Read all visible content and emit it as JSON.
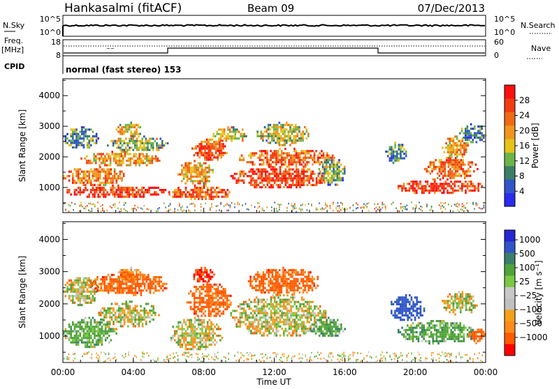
{
  "header": {
    "station": "Hankasalmi (fitACF)",
    "beam": "Beam 09",
    "date": "07/Dec/2013"
  },
  "top_panels": {
    "nsky_label": "N.Sky",
    "nsearch_label": "N.Search",
    "noise_ticks": [
      "10^5",
      "10^0"
    ],
    "freq_label": "Freq.",
    "freq_unit": "[MHz]",
    "freq_ticks": [
      "18",
      "8"
    ],
    "nave_label": "Nave",
    "nave_ticks": [
      "60",
      "0"
    ],
    "cpid_label": "CPID",
    "cpid_value": "normal (fast stereo) 153"
  },
  "colors": {
    "power_scale": [
      "#2a2af0",
      "#2f55c8",
      "#3a7f66",
      "#6bb54a",
      "#e6c21a",
      "#f0961e",
      "#f06a16",
      "#f03c10",
      "#ff1010"
    ],
    "velocity_scale": [
      "#ff0000",
      "#ff5a00",
      "#ff8a1a",
      "#f4a018",
      "#c0c0c0",
      "#c8c8c8",
      "#7ac843",
      "#4fa33a",
      "#3a7f6a",
      "#2f55c8",
      "#2626d4"
    ]
  },
  "chart_data": [
    {
      "type": "heatmap",
      "title": "Power",
      "ylabel": "Slant Range [km]",
      "ylim": [
        180,
        4550
      ],
      "yticks": [
        "1000",
        "2000",
        "3000",
        "4000"
      ],
      "colorbar_label": "Power [dB]",
      "colorbar_ticks": [
        "4",
        "8",
        "12",
        "16",
        "20",
        "24",
        "28"
      ],
      "colorbar_range": [
        0,
        32
      ],
      "blobs": [
        {
          "t0": 0.0,
          "t1": 6.0,
          "r0": 700,
          "r1": 1100,
          "v": 27
        },
        {
          "t0": 0.0,
          "t1": 3.5,
          "r0": 1100,
          "r1": 1700,
          "v": 22
        },
        {
          "t0": 1.0,
          "t1": 5.5,
          "r0": 1700,
          "r1": 2200,
          "v": 20
        },
        {
          "t0": 0.0,
          "t1": 2.0,
          "r0": 2300,
          "r1": 3000,
          "v": 9
        },
        {
          "t0": 2.5,
          "t1": 6.0,
          "r0": 2200,
          "r1": 2700,
          "v": 13
        },
        {
          "t0": 3.0,
          "t1": 4.5,
          "r0": 2700,
          "r1": 3150,
          "v": 18
        },
        {
          "t0": 6.0,
          "t1": 9.5,
          "r0": 600,
          "r1": 1100,
          "v": 24
        },
        {
          "t0": 6.5,
          "t1": 8.5,
          "r0": 1100,
          "r1": 1900,
          "v": 19
        },
        {
          "t0": 7.3,
          "t1": 9.3,
          "r0": 1900,
          "r1": 2600,
          "v": 26
        },
        {
          "t0": 8.5,
          "t1": 10.5,
          "r0": 2500,
          "r1": 3000,
          "v": 17
        },
        {
          "t0": 9.5,
          "t1": 15.0,
          "r0": 1000,
          "r1": 1700,
          "v": 27
        },
        {
          "t0": 10.0,
          "t1": 15.5,
          "r0": 1700,
          "r1": 2300,
          "v": 24
        },
        {
          "t0": 11.0,
          "t1": 14.0,
          "r0": 2400,
          "r1": 3150,
          "v": 15
        },
        {
          "t0": 14.5,
          "t1": 16.0,
          "r0": 1100,
          "r1": 2000,
          "v": 12
        },
        {
          "t0": 18.3,
          "t1": 19.5,
          "r0": 1800,
          "r1": 2500,
          "v": 9
        },
        {
          "t0": 19.0,
          "t1": 23.8,
          "r0": 800,
          "r1": 1300,
          "v": 28
        },
        {
          "t0": 20.5,
          "t1": 23.5,
          "r0": 1300,
          "r1": 2000,
          "v": 23
        },
        {
          "t0": 21.5,
          "t1": 23.0,
          "r0": 2000,
          "r1": 2700,
          "v": 20
        },
        {
          "t0": 22.5,
          "t1": 24.0,
          "r0": 2500,
          "r1": 3100,
          "v": 8
        }
      ]
    },
    {
      "type": "heatmap",
      "title": "Velocity",
      "ylabel": "Slant Range [km]",
      "ylim": [
        180,
        4550
      ],
      "yticks": [
        "1000",
        "2000",
        "3000",
        "4000"
      ],
      "xlabel": "Time UT",
      "xticks": [
        "00:00",
        "04:00",
        "08:00",
        "12:00",
        "16:00",
        "20:00",
        "00:00"
      ],
      "xlim": [
        0,
        24
      ],
      "colorbar_label": "Velocity [m s⁻¹]",
      "colorbar_ticks": [
        "1000",
        "500",
        "100",
        "25",
        "−25",
        "−100",
        "−500",
        "−1000"
      ],
      "blobs": [
        {
          "t0": 0.0,
          "t1": 3.0,
          "r0": 700,
          "r1": 1600,
          "v": 150
        },
        {
          "t0": 0.0,
          "t1": 2.0,
          "r0": 2000,
          "r1": 2900,
          "v": 0
        },
        {
          "t0": 2.0,
          "t1": 5.5,
          "r0": 1300,
          "r1": 2100,
          "v": 0
        },
        {
          "t0": 1.5,
          "t1": 6.0,
          "r0": 2300,
          "r1": 3000,
          "v": -300
        },
        {
          "t0": 3.0,
          "t1": 4.5,
          "r0": 2700,
          "r1": 3150,
          "v": -200
        },
        {
          "t0": 6.0,
          "t1": 9.0,
          "r0": 600,
          "r1": 1600,
          "v": 0
        },
        {
          "t0": 7.0,
          "t1": 9.5,
          "r0": 1600,
          "r1": 2700,
          "v": -300
        },
        {
          "t0": 7.3,
          "t1": 8.6,
          "r0": 2700,
          "r1": 3150,
          "v": -500
        },
        {
          "t0": 9.5,
          "t1": 15.0,
          "r0": 1000,
          "r1": 2300,
          "v": 0
        },
        {
          "t0": 10.5,
          "t1": 14.5,
          "r0": 2300,
          "r1": 3150,
          "v": -300
        },
        {
          "t0": 14.0,
          "t1": 16.0,
          "r0": 1000,
          "r1": 1600,
          "v": 200
        },
        {
          "t0": 19.0,
          "t1": 23.5,
          "r0": 800,
          "r1": 1500,
          "v": 200
        },
        {
          "t0": 18.5,
          "t1": 20.5,
          "r0": 1500,
          "r1": 2300,
          "v": 700
        },
        {
          "t0": 21.5,
          "t1": 23.5,
          "r0": 1700,
          "r1": 2400,
          "v": 0
        },
        {
          "t0": 23.0,
          "t1": 24.0,
          "r0": 800,
          "r1": 1300,
          "v": -300
        }
      ]
    }
  ]
}
